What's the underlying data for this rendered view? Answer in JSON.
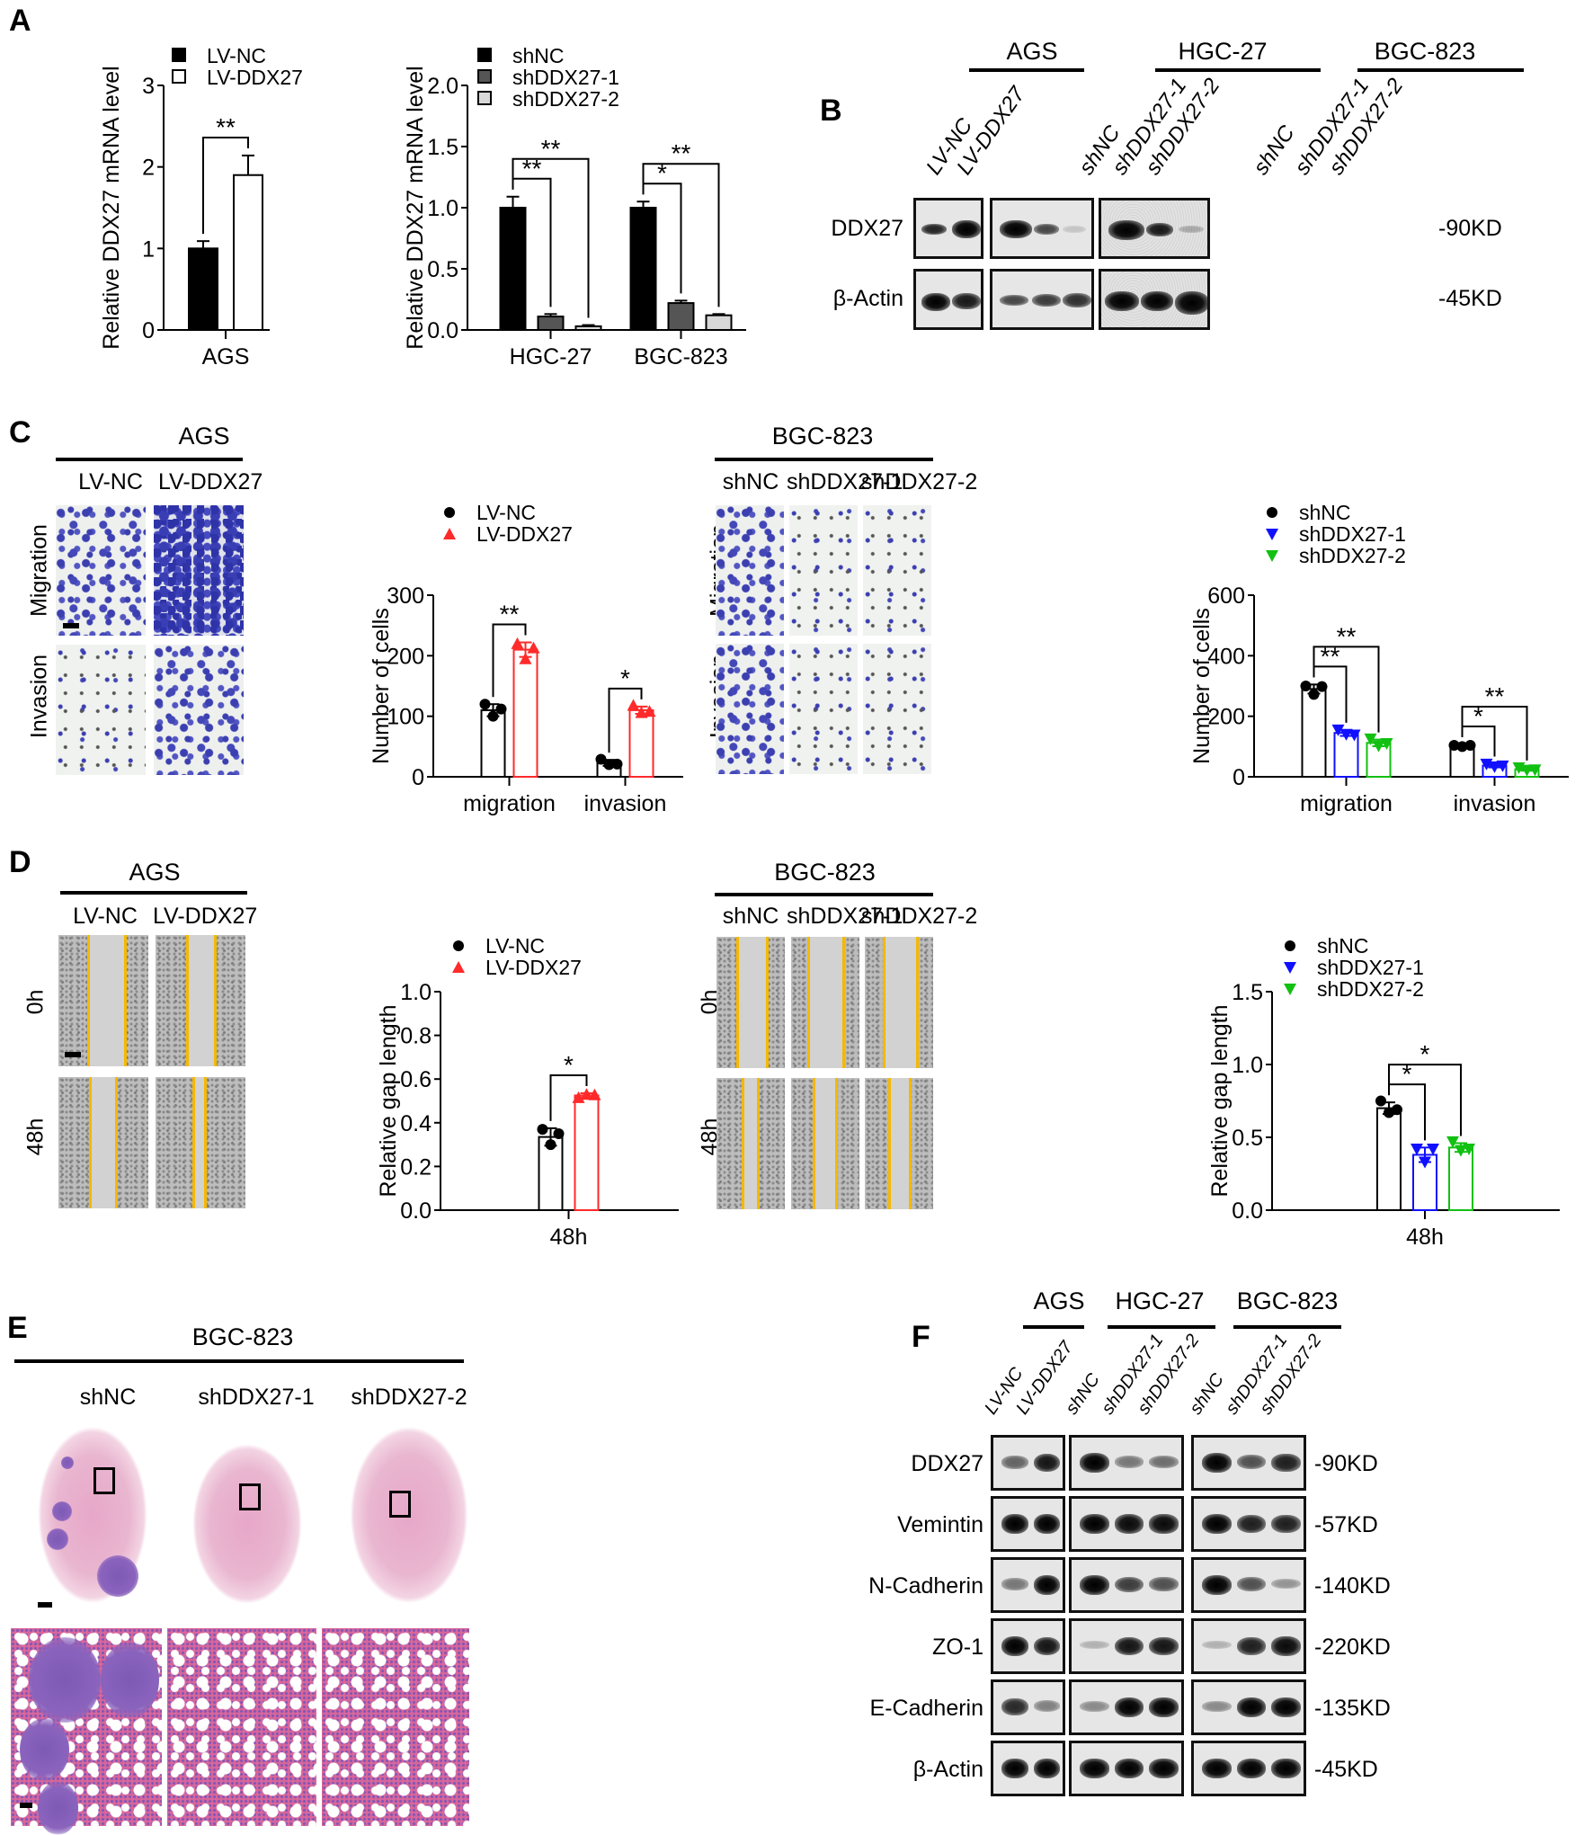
{
  "panels": {
    "A": {
      "label": "A"
    },
    "B": {
      "label": "B"
    },
    "C": {
      "label": "C"
    },
    "D": {
      "label": "D"
    },
    "E": {
      "label": "E"
    },
    "F": {
      "label": "F"
    }
  },
  "chart_data": [
    {
      "id": "A_left",
      "type": "bar",
      "title": "",
      "xlabel": "",
      "ylabel": "Relative DDX27 mRNA level",
      "categories": [
        "AGS"
      ],
      "series": [
        {
          "name": "LV-NC",
          "values": [
            1.0
          ],
          "error": [
            0.09
          ],
          "color": "#000000",
          "fill": "#000000"
        },
        {
          "name": "LV-DDX27",
          "values": [
            1.9
          ],
          "error": [
            0.24
          ],
          "color": "#000000",
          "fill": "#ffffff"
        }
      ],
      "yticks": [
        "0",
        "1",
        "2",
        "3"
      ],
      "ylim": [
        0,
        3
      ],
      "legend": [
        "LV-NC",
        "LV-DDX27"
      ],
      "legend_position": "top-inside",
      "annotations": [
        {
          "text": "**",
          "between": [
            "LV-NC",
            "LV-DDX27"
          ],
          "group": "AGS"
        }
      ],
      "grid": false
    },
    {
      "id": "A_right",
      "type": "bar",
      "ylabel": "Relative DDX27 mRNA level",
      "categories": [
        "HGC-27",
        "BGC-823"
      ],
      "series": [
        {
          "name": "shNC",
          "values": [
            1.0,
            1.0
          ],
          "error": [
            0.09,
            0.05
          ],
          "fill": "#000000"
        },
        {
          "name": "shDDX27-1",
          "values": [
            0.11,
            0.22
          ],
          "error": [
            0.02,
            0.02
          ],
          "fill": "#555555"
        },
        {
          "name": "shDDX27-2",
          "values": [
            0.03,
            0.12
          ],
          "error": [
            0.01,
            0.01
          ],
          "fill": "#d8d8d8"
        }
      ],
      "yticks": [
        "0.0",
        "0.5",
        "1.0",
        "1.5",
        "2.0"
      ],
      "ylim": [
        0,
        2
      ],
      "legend": [
        "shNC",
        "shDDX27-1",
        "shDDX27-2"
      ],
      "annotations": [
        {
          "group": "HGC-27",
          "text": "**",
          "between": [
            "shNC",
            "shDDX27-1"
          ]
        },
        {
          "group": "HGC-27",
          "text": "**",
          "between": [
            "shNC",
            "shDDX27-2"
          ]
        },
        {
          "group": "BGC-823",
          "text": "*",
          "between": [
            "shNC",
            "shDDX27-1"
          ]
        },
        {
          "group": "BGC-823",
          "text": "**",
          "between": [
            "shNC",
            "shDDX27-2"
          ]
        }
      ],
      "grid": false
    },
    {
      "id": "C_left",
      "type": "bar",
      "ylabel": "Number of cells",
      "categories": [
        "migration",
        "invasion"
      ],
      "series": [
        {
          "name": "LV-NC",
          "values": [
            110,
            23
          ],
          "error": [
            10,
            5
          ],
          "color": "#000000",
          "marker": "circle",
          "points": [
            [
              120,
              100,
              112
            ],
            [
              29,
              20,
              21
            ]
          ]
        },
        {
          "name": "LV-DDX27",
          "values": [
            210,
            110
          ],
          "error": [
            12,
            6
          ],
          "color": "#ff2a2a",
          "marker": "triangle-up",
          "points": [
            [
              220,
              195,
              213
            ],
            [
              118,
              106,
              108
            ]
          ]
        }
      ],
      "yticks": [
        "0",
        "100",
        "200",
        "300"
      ],
      "ylim": [
        0,
        300
      ],
      "legend": [
        "LV-NC",
        "LV-DDX27"
      ],
      "annotations": [
        {
          "group": "migration",
          "text": "**"
        },
        {
          "group": "invasion",
          "text": "*"
        }
      ],
      "grid": false
    },
    {
      "id": "C_right",
      "type": "bar",
      "ylabel": "Number of cells",
      "categories": [
        "migration",
        "invasion"
      ],
      "series": [
        {
          "name": "shNC",
          "values": [
            290,
            103
          ],
          "error": [
            15,
            4
          ],
          "color": "#000000",
          "marker": "circle",
          "points": [
            [
              300,
              272,
              298
            ],
            [
              104,
              100,
              104
            ]
          ]
        },
        {
          "name": "shDDX27-1",
          "values": [
            145,
            37
          ],
          "error": [
            10,
            6
          ],
          "color": "#1010ff",
          "marker": "triangle-down",
          "points": [
            [
              155,
              140,
              138
            ],
            [
              42,
              33,
              36
            ]
          ]
        },
        {
          "name": "shDDX27-2",
          "values": [
            112,
            25
          ],
          "error": [
            11,
            5
          ],
          "color": "#12c012",
          "marker": "triangle-down",
          "points": [
            [
              125,
              102,
              110
            ],
            [
              30,
              22,
              23
            ]
          ]
        }
      ],
      "yticks": [
        "0",
        "200",
        "400",
        "600"
      ],
      "ylim": [
        0,
        600
      ],
      "legend": [
        "shNC",
        "shDDX27-1",
        "shDDX27-2"
      ],
      "annotations": [
        {
          "group": "migration",
          "text": "**",
          "between": [
            "shNC",
            "shDDX27-1"
          ]
        },
        {
          "group": "migration",
          "text": "**",
          "between": [
            "shNC",
            "shDDX27-2"
          ]
        },
        {
          "group": "invasion",
          "text": "*",
          "between": [
            "shNC",
            "shDDX27-1"
          ]
        },
        {
          "group": "invasion",
          "text": "**",
          "between": [
            "shNC",
            "shDDX27-2"
          ]
        }
      ],
      "grid": false
    },
    {
      "id": "D_left",
      "type": "bar",
      "ylabel": "Relative gap length",
      "categories": [
        "48h"
      ],
      "series": [
        {
          "name": "LV-NC",
          "values": [
            0.335
          ],
          "error": [
            0.04
          ],
          "color": "#000000",
          "marker": "circle",
          "points": [
            [
              0.37,
              0.3,
              0.35
            ]
          ]
        },
        {
          "name": "LV-DDX27",
          "values": [
            0.525
          ],
          "error": [
            0.01
          ],
          "color": "#ff2a2a",
          "marker": "triangle-up",
          "points": [
            [
              0.515,
              0.53,
              0.528
            ]
          ]
        }
      ],
      "yticks": [
        "0.0",
        "0.2",
        "0.4",
        "0.6",
        "0.8",
        "1.0"
      ],
      "ylim": [
        0,
        1.0
      ],
      "legend": [
        "LV-NC",
        "LV-DDX27"
      ],
      "annotations": [
        {
          "group": "48h",
          "text": "*"
        }
      ],
      "grid": false
    },
    {
      "id": "D_right",
      "type": "bar",
      "ylabel": "Relative gap length",
      "categories": [
        "48h"
      ],
      "series": [
        {
          "name": "shNC",
          "values": [
            0.7
          ],
          "error": [
            0.04
          ],
          "color": "#000000",
          "marker": "circle",
          "points": [
            [
              0.75,
              0.67,
              0.69
            ]
          ]
        },
        {
          "name": "shDDX27-1",
          "values": [
            0.38
          ],
          "error": [
            0.05
          ],
          "color": "#1010ff",
          "marker": "triangle-down",
          "points": [
            [
              0.42,
              0.33,
              0.42
            ]
          ]
        },
        {
          "name": "shDDX27-2",
          "values": [
            0.43
          ],
          "error": [
            0.03
          ],
          "color": "#12c012",
          "marker": "triangle-down",
          "points": [
            [
              0.47,
              0.41,
              0.42
            ]
          ]
        }
      ],
      "yticks": [
        "0.0",
        "0.5",
        "1.0",
        "1.5"
      ],
      "ylim": [
        0,
        1.5
      ],
      "legend": [
        "shNC",
        "shDDX27-1",
        "shDDX27-2"
      ],
      "annotations": [
        {
          "group": "48h",
          "text": "*",
          "between": [
            "shNC",
            "shDDX27-1"
          ]
        },
        {
          "group": "48h",
          "text": "*",
          "between": [
            "shNC",
            "shDDX27-2"
          ]
        }
      ],
      "grid": false
    }
  ],
  "panelB": {
    "groups": [
      "AGS",
      "HGC-27",
      "BGC-823"
    ],
    "lanes": [
      "LV-NC",
      "LV-DDX27",
      "shNC",
      "shDDX27-1",
      "shDDX27-2",
      "shNC",
      "shDDX27-1",
      "shDDX27-2"
    ],
    "rows": [
      {
        "name": "DDX27",
        "kd": "-90KD"
      },
      {
        "name": "β-Actin",
        "kd": "-45KD"
      }
    ]
  },
  "panelC": {
    "left": {
      "title": "AGS",
      "cols": [
        "LV-NC",
        "LV-DDX27"
      ],
      "rows": [
        "Migration",
        "Invasion"
      ]
    },
    "right": {
      "title": "BGC-823",
      "cols": [
        "shNC",
        "shDDX27-1",
        "shDDX27-2"
      ],
      "rows": [
        "Migration",
        "Invasion"
      ]
    }
  },
  "panelD": {
    "left": {
      "title": "AGS",
      "cols": [
        "LV-NC",
        "LV-DDX27"
      ],
      "rows": [
        "0h",
        "48h"
      ]
    },
    "right": {
      "title": "BGC-823",
      "cols": [
        "shNC",
        "shDDX27-1",
        "shDDX27-2"
      ],
      "rows": [
        "0h",
        "48h"
      ]
    }
  },
  "panelE": {
    "title": "BGC-823",
    "cols": [
      "shNC",
      "shDDX27-1",
      "shDDX27-2"
    ]
  },
  "panelF": {
    "groups": [
      "AGS",
      "HGC-27",
      "BGC-823"
    ],
    "lanes": [
      "LV-NC",
      "LV-DDX27",
      "shNC",
      "shDDX27-1",
      "shDDX27-2",
      "shNC",
      "shDDX27-1",
      "shDDX27-2"
    ],
    "rows": [
      {
        "name": "DDX27",
        "kd": "-90KD"
      },
      {
        "name": "Vemintin",
        "kd": "-57KD"
      },
      {
        "name": "N-Cadherin",
        "kd": "-140KD"
      },
      {
        "name": "ZO-1",
        "kd": "-220KD"
      },
      {
        "name": "E-Cadherin",
        "kd": "-135KD"
      },
      {
        "name": "β-Actin",
        "kd": "-45KD"
      }
    ]
  }
}
